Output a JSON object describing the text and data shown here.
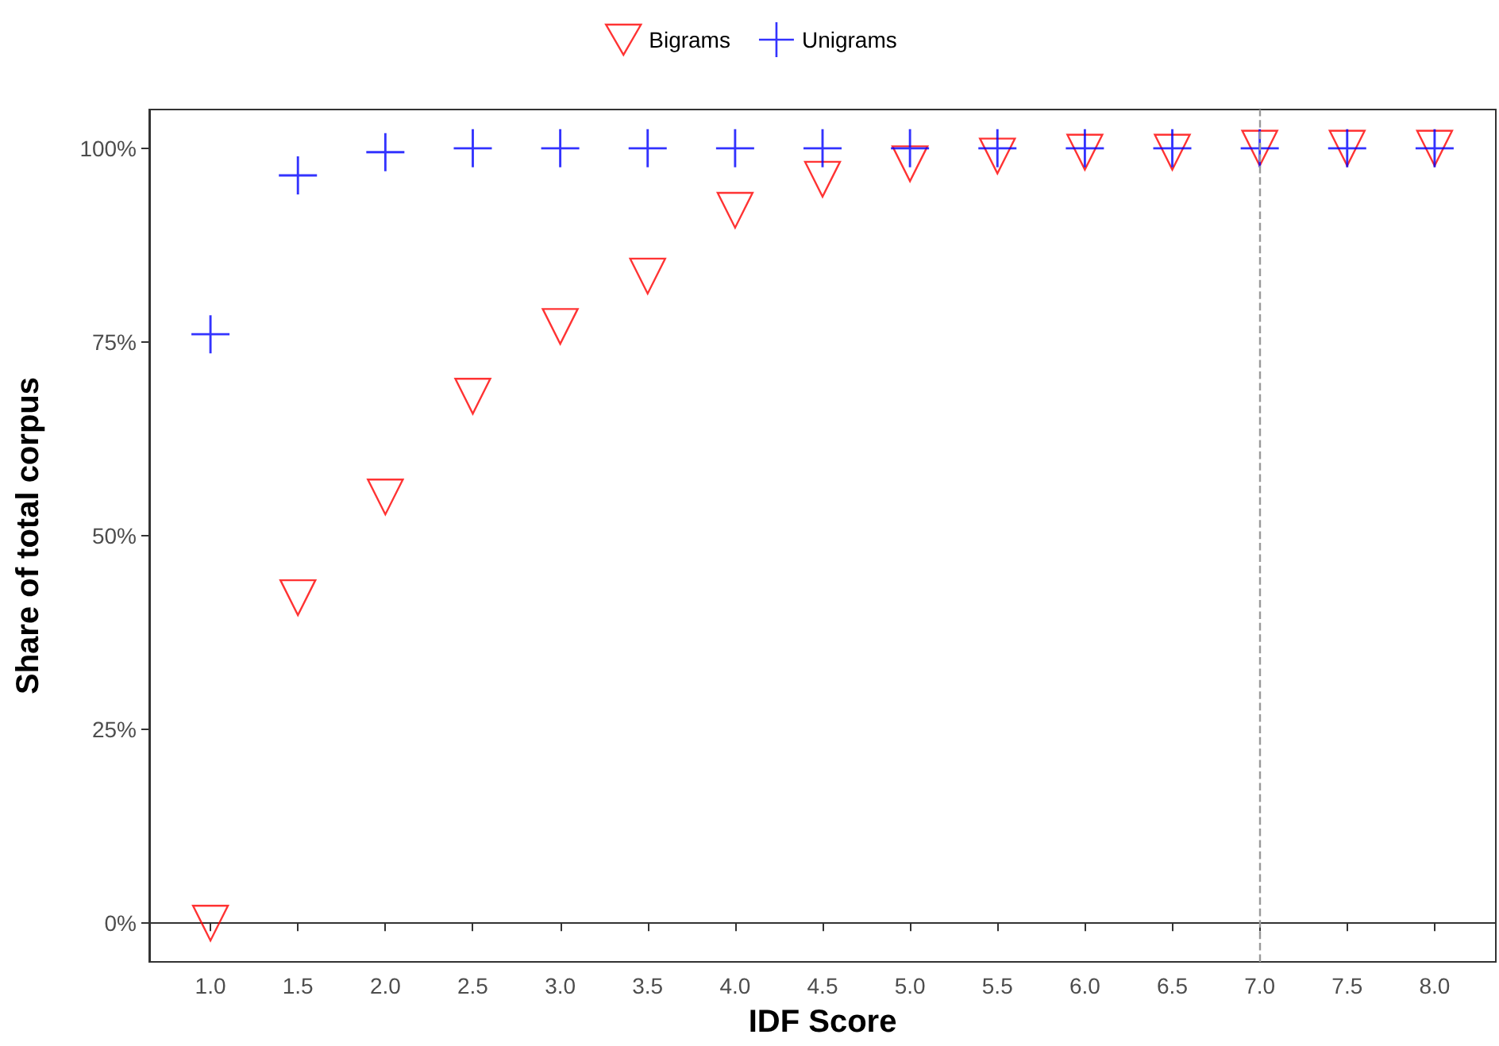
{
  "chart_data": {
    "type": "scatter",
    "xlabel": "IDF Score",
    "ylabel": "Share of total corpus",
    "x": [
      1.0,
      1.5,
      2.0,
      2.5,
      3.0,
      3.5,
      4.0,
      4.5,
      5.0,
      5.5,
      6.0,
      6.5,
      7.0,
      7.5,
      8.0
    ],
    "series": [
      {
        "name": "Bigrams",
        "color": "#ff0000",
        "marker": "triangle",
        "values": [
          0,
          42,
          55,
          68,
          77,
          83.5,
          92,
          96,
          98,
          99,
          99.5,
          99.5,
          100,
          100,
          100
        ]
      },
      {
        "name": "Unigrams",
        "color": "#0000ff",
        "marker": "cross",
        "values": [
          76,
          96.5,
          99.5,
          100,
          100,
          100,
          100,
          100,
          100,
          100,
          100,
          100,
          100,
          100,
          100
        ]
      }
    ],
    "xlim": [
      0.65,
      8.35
    ],
    "xticks": [
      {
        "value": 1,
        "label": "1.0"
      },
      {
        "value": 1.5,
        "label": "1.5"
      },
      {
        "value": 2,
        "label": "2.0"
      },
      {
        "value": 2.5,
        "label": "2.5"
      },
      {
        "value": 3,
        "label": "3.0"
      },
      {
        "value": 3.5,
        "label": "3.5"
      },
      {
        "value": 4,
        "label": "4.0"
      },
      {
        "value": 4.5,
        "label": "4.5"
      },
      {
        "value": 5,
        "label": "5.0"
      },
      {
        "value": 5.5,
        "label": "5.5"
      },
      {
        "value": 6,
        "label": "6.0"
      },
      {
        "value": 6.5,
        "label": "6.5"
      },
      {
        "value": 7,
        "label": "7.0"
      },
      {
        "value": 7.5,
        "label": "7.5"
      },
      {
        "value": 8,
        "label": "8.0"
      }
    ],
    "ylim": [
      -5,
      105
    ],
    "yticks": [
      {
        "value": 0,
        "label": "0%"
      },
      {
        "value": 25,
        "label": "25%"
      },
      {
        "value": 50,
        "label": "50%"
      },
      {
        "value": 75,
        "label": "75%"
      },
      {
        "value": 100,
        "label": "100%"
      }
    ],
    "ref_lines": [
      {
        "axis": "x",
        "value": 7,
        "color": "#999999",
        "line_style": "dashed"
      }
    ],
    "grid": false,
    "legend": "top"
  }
}
